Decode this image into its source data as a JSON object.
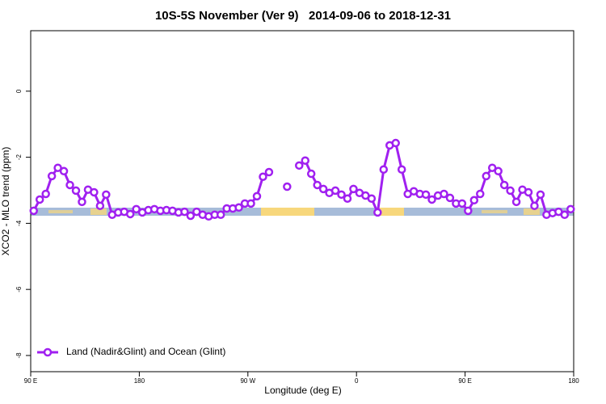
{
  "chart_data": {
    "type": "line",
    "title": "10S-5S November (Ver 9)   2014-09-06 to 2018-12-31",
    "x_label": "Longitude (deg E)",
    "y_label": "XCO2 - MLO trend (ppm)",
    "xlim": [
      90,
      540
    ],
    "ylim": [
      -8.49,
      1.83
    ],
    "xticks": [
      {
        "value": 90,
        "label": "90 E"
      },
      180,
      {
        "value": 270,
        "label": "90 W"
      },
      {
        "value": 360,
        "label": "0"
      },
      {
        "value": 450,
        "label": "90 E"
      },
      {
        "value": 540,
        "label": "180"
      }
    ],
    "yticks": [
      0,
      -2,
      -4,
      -6,
      -8
    ],
    "legend": "bottom-left",
    "x": [
      92.5,
      97.5,
      102.5,
      107.5,
      112.5,
      117.5,
      122.5,
      127.5,
      132.5,
      137.5,
      142.5,
      147.5,
      152.5,
      157.5,
      162.5,
      167.5,
      172.5,
      177.5,
      182.5,
      187.5,
      192.5,
      197.5,
      202.5,
      207.5,
      212.5,
      217.5,
      222.5,
      227.5,
      232.5,
      237.5,
      242.5,
      247.5,
      252.5,
      257.5,
      262.5,
      267.5,
      272.5,
      277.5,
      282.5,
      287.5,
      292.5,
      297.5,
      302.5,
      307.5,
      312.5,
      317.5,
      322.5,
      327.5,
      332.5,
      337.5,
      342.5,
      347.5,
      352.5,
      357.5,
      362.5,
      367.5,
      372.5,
      377.5,
      382.5,
      387.5,
      392.5,
      397.5,
      402.5,
      407.5,
      412.5,
      417.5,
      422.5,
      427.5,
      432.5,
      437.5,
      442.5,
      447.5,
      452.5,
      457.5,
      462.5,
      467.5,
      472.5,
      477.5,
      482.5,
      487.5,
      492.5,
      497.5,
      502.5,
      507.5,
      512.5,
      517.5,
      522.5,
      527.5,
      532.5,
      537.5
    ],
    "series": [
      {
        "name": "Land (Nadir&Glint) and Ocean (Glint)",
        "color": "#a020f0",
        "values": [
          -3.62,
          -3.28,
          -3.11,
          -2.57,
          -2.32,
          -2.42,
          -2.84,
          -3.01,
          -3.35,
          -2.98,
          -3.06,
          -3.47,
          -3.13,
          -3.74,
          -3.67,
          -3.65,
          -3.72,
          -3.57,
          -3.67,
          -3.6,
          -3.57,
          -3.62,
          -3.6,
          -3.62,
          -3.67,
          -3.65,
          -3.77,
          -3.65,
          -3.74,
          -3.79,
          -3.74,
          -3.74,
          -3.55,
          -3.55,
          -3.52,
          -3.4,
          -3.4,
          -3.18,
          -2.59,
          -2.45,
          null,
          null,
          -2.89,
          null,
          -2.25,
          -2.1,
          -2.5,
          -2.84,
          -2.96,
          -3.08,
          -3.01,
          -3.13,
          -3.25,
          -2.96,
          -3.08,
          -3.16,
          -3.25,
          -3.67,
          -2.37,
          -1.64,
          -1.57,
          -2.37,
          -3.11,
          -3.03,
          -3.11,
          -3.13,
          -3.28,
          -3.16,
          -3.11,
          -3.23,
          -3.4,
          -3.4,
          -3.62,
          -3.3,
          -3.11,
          -2.57,
          -2.32,
          -2.42,
          -2.84,
          -3.01,
          -3.35,
          -2.98,
          -3.06,
          -3.47,
          -3.13,
          -3.74,
          -3.69,
          -3.65,
          -3.74,
          -3.57
        ]
      }
    ]
  }
}
